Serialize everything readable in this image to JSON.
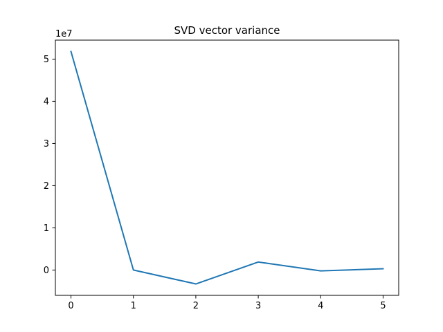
{
  "chart_data": {
    "type": "line",
    "title": "SVD vector variance",
    "xlabel": "",
    "ylabel": "",
    "y_offset_label": "1e7",
    "x": [
      0,
      1,
      2,
      3,
      4,
      5
    ],
    "series": [
      {
        "values": [
          51800000,
          0,
          -3300000,
          1900000,
          -200000,
          300000
        ],
        "color": "#1f77b4"
      }
    ],
    "xlim": [
      -0.25,
      5.25
    ],
    "ylim": [
      -6000000,
      54500000
    ],
    "xticks": [
      0,
      1,
      2,
      3,
      4,
      5
    ],
    "xtick_labels": [
      "0",
      "1",
      "2",
      "3",
      "4",
      "5"
    ],
    "yticks": [
      0,
      10000000,
      20000000,
      30000000,
      40000000,
      50000000
    ],
    "ytick_labels": [
      "0",
      "1",
      "2",
      "3",
      "4",
      "5"
    ],
    "grid": false,
    "legend": "none"
  }
}
